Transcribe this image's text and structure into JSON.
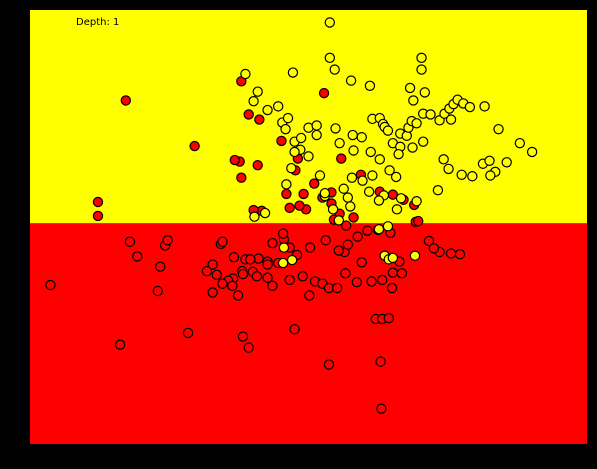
{
  "chart_data": {
    "type": "scatter",
    "annotation": "Depth: 1",
    "xlim": [
      -3.2,
      3.6
    ],
    "ylim": [
      -2.7,
      3.2
    ],
    "grid": false,
    "regions": [
      {
        "name": "upper",
        "y_from": 0.3,
        "y_to": 3.2,
        "color": "#ffff00"
      },
      {
        "name": "lower",
        "y_from": -2.7,
        "y_to": 0.3,
        "color": "#ff0000"
      }
    ],
    "split_y": 0.3,
    "colors": {
      "red": "#ff0000",
      "yellow": "#ffff00",
      "edge": "#000000",
      "background": "#000000"
    },
    "series": [
      {
        "color": "#ff0000",
        "points": [
          [
            -0.62,
            2.23
          ],
          [
            -0.53,
            1.78
          ],
          [
            -2.03,
            1.97
          ],
          [
            -1.19,
            1.35
          ],
          [
            -2.37,
            0.59
          ],
          [
            -2.37,
            0.4
          ],
          [
            -0.64,
            1.14
          ],
          [
            -0.62,
            0.92
          ],
          [
            -0.4,
            1.71
          ],
          [
            -0.42,
            1.09
          ],
          [
            -0.13,
            1.42
          ],
          [
            -0.07,
            0.7
          ],
          [
            -0.03,
            0.51
          ],
          [
            0.07,
            1.18
          ],
          [
            0.04,
            1.02
          ],
          [
            0.14,
            0.7
          ],
          [
            0.17,
            0.49
          ],
          [
            -0.37,
            0.47
          ],
          [
            0.27,
            0.84
          ],
          [
            0.09,
            0.54
          ],
          [
            0.48,
            0.57
          ],
          [
            0.58,
            0.43
          ],
          [
            0.6,
            1.18
          ],
          [
            0.84,
            0.96
          ],
          [
            1.36,
            0.62
          ],
          [
            1.07,
            0.73
          ],
          [
            1.23,
            0.69
          ],
          [
            0.51,
            0.35
          ],
          [
            1.51,
            0.32
          ],
          [
            0.39,
            2.07
          ],
          [
            0.75,
            0.38
          ],
          [
            0.66,
            0.27
          ],
          [
            0.37,
            0.65
          ],
          [
            1.49,
            0.55
          ],
          [
            0.48,
            0.72
          ],
          [
            -0.7,
            1.16
          ],
          [
            -1.55,
            0.0
          ],
          [
            -0.47,
            0.48
          ],
          [
            -0.87,
            0.02
          ],
          [
            -0.97,
            -0.26
          ],
          [
            -0.85,
            0.05
          ],
          [
            -0.1,
            0.08
          ],
          [
            -0.3,
            -0.22
          ],
          [
            -0.72,
            -0.45
          ],
          [
            -2.95,
            -0.54
          ],
          [
            -2.1,
            -1.35
          ],
          [
            -1.64,
            -0.62
          ],
          [
            -1.27,
            -1.19
          ],
          [
            -0.6,
            -1.24
          ],
          [
            -0.78,
            -0.48
          ],
          [
            -0.71,
            -0.16
          ],
          [
            -0.57,
            -0.19
          ],
          [
            -0.61,
            -0.35
          ],
          [
            -0.48,
            -0.36
          ],
          [
            -0.43,
            -0.42
          ],
          [
            -0.3,
            -0.44
          ],
          [
            -0.6,
            -0.39
          ],
          [
            -0.24,
            -0.55
          ],
          [
            -0.17,
            -0.24
          ],
          [
            -0.03,
            -0.03
          ],
          [
            0.06,
            -0.13
          ],
          [
            0.13,
            -0.42
          ],
          [
            0.21,
            -0.68
          ],
          [
            0.28,
            -0.49
          ],
          [
            0.37,
            -0.52
          ],
          [
            0.45,
            -0.58
          ],
          [
            0.55,
            -0.58
          ],
          [
            0.65,
            -0.38
          ],
          [
            0.79,
            -0.5
          ],
          [
            0.64,
            -0.09
          ],
          [
            0.85,
            -0.23
          ],
          [
            0.97,
            -0.49
          ],
          [
            1.1,
            -0.47
          ],
          [
            1.13,
            -0.14
          ],
          [
            1.23,
            -0.37
          ],
          [
            1.31,
            -0.22
          ],
          [
            1.22,
            -0.58
          ],
          [
            1.34,
            -0.38
          ],
          [
            1.54,
            0.33
          ],
          [
            1.67,
            0.06
          ],
          [
            1.8,
            -0.09
          ],
          [
            1.94,
            -0.11
          ],
          [
            2.05,
            -0.12
          ],
          [
            1.73,
            -0.04
          ],
          [
            1.2,
            0.17
          ],
          [
            1.05,
            0.21
          ],
          [
            0.92,
            0.2
          ],
          [
            0.8,
            0.12
          ],
          [
            0.68,
            0.01
          ],
          [
            0.57,
            -0.07
          ],
          [
            0.41,
            0.07
          ],
          [
            0.22,
            -0.03
          ],
          [
            -0.11,
            0.16
          ],
          [
            -0.24,
            0.03
          ],
          [
            -0.41,
            -0.18
          ],
          [
            -0.92,
            -0.4
          ],
          [
            -1.04,
            -0.35
          ],
          [
            -0.97,
            -0.64
          ],
          [
            -0.85,
            -0.52
          ],
          [
            -0.66,
            -0.68
          ],
          [
            -0.73,
            -0.55
          ],
          [
            -0.51,
            -0.19
          ],
          [
            0.03,
            -1.14
          ],
          [
            -0.53,
            -1.39
          ],
          [
            0.45,
            -1.62
          ],
          [
            1.02,
            -1.0
          ],
          [
            1.1,
            -1.0
          ],
          [
            1.18,
            -0.99
          ],
          [
            -1.61,
            -0.29
          ],
          [
            -1.89,
            -0.15
          ],
          [
            -1.98,
            0.05
          ],
          [
            -1.52,
            0.07
          ],
          [
            1.08,
            -1.58
          ],
          [
            1.09,
            -2.22
          ],
          [
            -0.03,
            -0.47
          ],
          [
            -0.3,
            -0.26
          ]
        ]
      },
      {
        "color": "#ffff00",
        "points": [
          [
            0.46,
            3.03
          ],
          [
            0.46,
            2.55
          ],
          [
            0.52,
            2.39
          ],
          [
            1.58,
            2.55
          ],
          [
            1.58,
            2.39
          ],
          [
            0.72,
            2.24
          ],
          [
            0.95,
            2.17
          ],
          [
            1.44,
            2.14
          ],
          [
            1.48,
            1.97
          ],
          [
            1.62,
            2.08
          ],
          [
            2.35,
            1.89
          ],
          [
            2.52,
            1.58
          ],
          [
            -0.57,
            2.33
          ],
          [
            -0.42,
            2.09
          ],
          [
            -0.47,
            1.96
          ],
          [
            -0.17,
            1.89
          ],
          [
            0.01,
            2.35
          ],
          [
            -0.3,
            1.84
          ],
          [
            -0.12,
            1.67
          ],
          [
            -0.08,
            1.58
          ],
          [
            -0.05,
            1.73
          ],
          [
            0.03,
            1.41
          ],
          [
            0.11,
            1.46
          ],
          [
            0.1,
            1.3
          ],
          [
            0.2,
            1.6
          ],
          [
            0.3,
            1.63
          ],
          [
            0.3,
            1.5
          ],
          [
            0.53,
            1.59
          ],
          [
            0.58,
            1.39
          ],
          [
            0.74,
            1.5
          ],
          [
            0.75,
            1.29
          ],
          [
            0.85,
            1.47
          ],
          [
            0.98,
            1.72
          ],
          [
            1.07,
            1.73
          ],
          [
            1.11,
            1.65
          ],
          [
            1.13,
            1.61
          ],
          [
            1.17,
            1.56
          ],
          [
            1.23,
            1.39
          ],
          [
            1.32,
            1.34
          ],
          [
            1.32,
            1.52
          ],
          [
            1.4,
            1.49
          ],
          [
            1.42,
            1.6
          ],
          [
            1.46,
            1.69
          ],
          [
            1.52,
            1.66
          ],
          [
            1.6,
            1.79
          ],
          [
            1.69,
            1.78
          ],
          [
            1.8,
            1.7
          ],
          [
            1.86,
            1.79
          ],
          [
            1.92,
            1.86
          ],
          [
            1.94,
            1.71
          ],
          [
            1.97,
            1.92
          ],
          [
            2.02,
            1.98
          ],
          [
            2.09,
            1.93
          ],
          [
            2.17,
            1.88
          ],
          [
            1.3,
            1.24
          ],
          [
            1.47,
            1.33
          ],
          [
            1.6,
            1.41
          ],
          [
            1.85,
            1.17
          ],
          [
            1.91,
            1.04
          ],
          [
            2.07,
            0.96
          ],
          [
            2.2,
            0.94
          ],
          [
            2.33,
            1.11
          ],
          [
            2.41,
            1.15
          ],
          [
            2.48,
            1.0
          ],
          [
            2.42,
            0.95
          ],
          [
            2.62,
            1.13
          ],
          [
            2.78,
            1.39
          ],
          [
            2.93,
            1.27
          ],
          [
            0.96,
            1.27
          ],
          [
            1.07,
            1.17
          ],
          [
            1.19,
            1.02
          ],
          [
            1.27,
            0.93
          ],
          [
            0.73,
            0.92
          ],
          [
            0.63,
            0.77
          ],
          [
            0.4,
            0.67
          ],
          [
            0.68,
            0.65
          ],
          [
            0.86,
            0.88
          ],
          [
            0.98,
            0.95
          ],
          [
            1.12,
            0.68
          ],
          [
            1.28,
            0.49
          ],
          [
            1.33,
            0.64
          ],
          [
            1.52,
            0.6
          ],
          [
            1.78,
            0.75
          ],
          [
            -0.33,
            0.44
          ],
          [
            -0.46,
            0.39
          ],
          [
            -0.07,
            0.83
          ],
          [
            -0.01,
            1.05
          ],
          [
            0.2,
            1.21
          ],
          [
            0.34,
            0.95
          ],
          [
            0.4,
            0.71
          ],
          [
            0.5,
            0.49
          ],
          [
            0.57,
            0.34
          ],
          [
            0.71,
            0.53
          ],
          [
            0.94,
            0.73
          ],
          [
            1.06,
            0.61
          ],
          [
            1.17,
            0.26
          ],
          [
            1.06,
            0.22
          ],
          [
            -0.1,
            -0.03
          ],
          [
            -0.11,
            -0.24
          ],
          [
            0.0,
            -0.2
          ],
          [
            1.13,
            -0.14
          ],
          [
            1.18,
            -0.19
          ],
          [
            1.23,
            -0.17
          ],
          [
            1.5,
            -0.14
          ],
          [
            0.03,
            1.27
          ]
        ]
      }
    ]
  }
}
